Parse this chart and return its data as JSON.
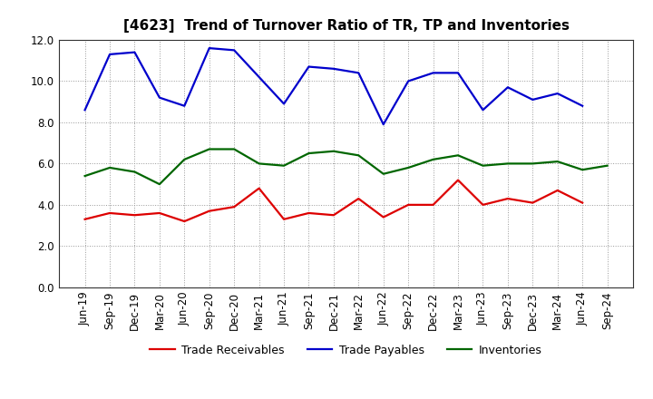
{
  "title": "[4623]  Trend of Turnover Ratio of TR, TP and Inventories",
  "x_labels": [
    "Jun-19",
    "Sep-19",
    "Dec-19",
    "Mar-20",
    "Jun-20",
    "Sep-20",
    "Dec-20",
    "Mar-21",
    "Jun-21",
    "Sep-21",
    "Dec-21",
    "Mar-22",
    "Jun-22",
    "Sep-22",
    "Dec-22",
    "Mar-23",
    "Jun-23",
    "Sep-23",
    "Dec-23",
    "Mar-24",
    "Jun-24",
    "Sep-24"
  ],
  "trade_receivables": [
    3.3,
    3.6,
    3.5,
    3.6,
    3.2,
    3.7,
    3.9,
    4.8,
    3.3,
    3.6,
    3.5,
    4.3,
    3.4,
    4.0,
    4.0,
    5.2,
    4.0,
    4.3,
    4.1,
    4.7,
    4.1,
    null
  ],
  "trade_payables": [
    8.6,
    11.3,
    11.4,
    9.2,
    8.8,
    11.6,
    11.5,
    10.2,
    8.9,
    10.7,
    10.6,
    10.4,
    7.9,
    10.0,
    10.4,
    10.4,
    8.6,
    9.7,
    9.1,
    9.4,
    8.8,
    null
  ],
  "inventories": [
    5.4,
    5.8,
    5.6,
    5.0,
    6.2,
    6.7,
    6.7,
    6.0,
    5.9,
    6.5,
    6.6,
    6.4,
    5.5,
    5.8,
    6.2,
    6.4,
    5.9,
    6.0,
    6.0,
    6.1,
    5.7,
    5.9
  ],
  "tr_color": "#dd0000",
  "tp_color": "#0000cc",
  "inv_color": "#006600",
  "ylim": [
    0.0,
    12.0
  ],
  "yticks": [
    0.0,
    2.0,
    4.0,
    6.0,
    8.0,
    10.0,
    12.0
  ],
  "legend_labels": [
    "Trade Receivables",
    "Trade Payables",
    "Inventories"
  ],
  "background_color": "#ffffff",
  "grid_color": "#999999",
  "title_fontsize": 11,
  "tick_fontsize": 8.5
}
